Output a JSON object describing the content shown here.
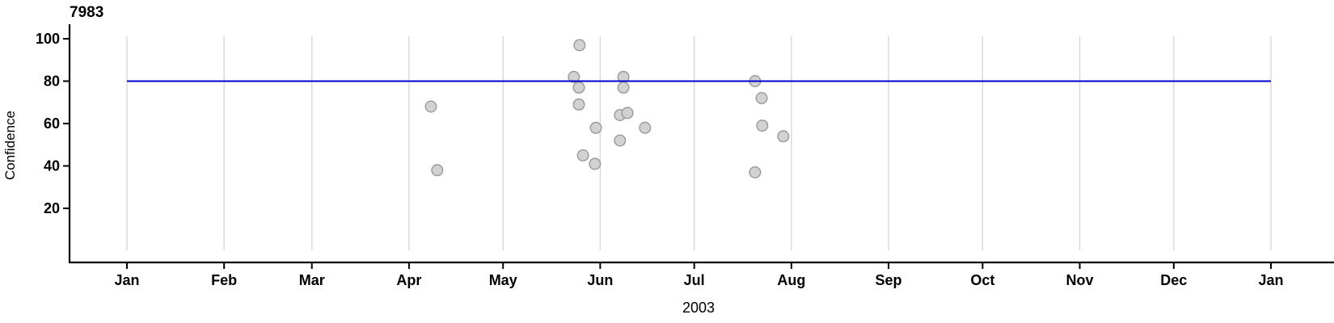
{
  "figure": {
    "title": "7983",
    "x_axis_label": "2003",
    "y_axis_label": "Confidence"
  },
  "colors": {
    "background": "#ffffff",
    "axis": "#000000",
    "gridline": "#d8d8d8",
    "tick_text": "#000000",
    "reference_line": "#0000cc",
    "point_fill": "#d2d2d2",
    "point_stroke": "#999999"
  },
  "chart_data": {
    "type": "scatter",
    "title": "7983",
    "xlabel": "2003",
    "ylabel": "Confidence",
    "grid": "vertical-monthly",
    "legend": "none",
    "x_axis": {
      "kind": "date",
      "year_shown": "2003",
      "tick_labels": [
        "Jan",
        "Feb",
        "Mar",
        "Apr",
        "May",
        "Jun",
        "Jul",
        "Aug",
        "Sep",
        "Oct",
        "Nov",
        "Dec",
        "Jan"
      ],
      "tick_days_from_jan1": [
        0,
        31,
        59,
        90,
        120,
        151,
        181,
        212,
        243,
        273,
        304,
        334,
        365
      ],
      "range_days": [
        0,
        365
      ]
    },
    "y_axis": {
      "label": "Confidence",
      "tick_values": [
        20,
        40,
        60,
        80,
        100
      ],
      "range": [
        0,
        104
      ]
    },
    "reference_line": {
      "y": 80,
      "color": "#0000cc",
      "orientation": "horizontal",
      "span": "full-plot-width"
    },
    "point_style": {
      "shape": "circle",
      "fill": "#d2d2d2",
      "stroke": "#999999",
      "radius_px": 6.8
    },
    "points": [
      {
        "date": "2003-04-08",
        "day_of_year": 97,
        "confidence": 68
      },
      {
        "date": "2003-04-10",
        "day_of_year": 99,
        "confidence": 38
      },
      {
        "date": "2003-05-23",
        "day_of_year": 142.6,
        "confidence": 82
      },
      {
        "date": "2003-05-25",
        "day_of_year": 144.4,
        "confidence": 97
      },
      {
        "date": "2003-05-25",
        "day_of_year": 144.2,
        "confidence": 77
      },
      {
        "date": "2003-05-25",
        "day_of_year": 144.2,
        "confidence": 69
      },
      {
        "date": "2003-05-26",
        "day_of_year": 145.5,
        "confidence": 45
      },
      {
        "date": "2003-05-30",
        "day_of_year": 149.6,
        "confidence": 58
      },
      {
        "date": "2003-05-30",
        "day_of_year": 149.3,
        "confidence": 41
      },
      {
        "date": "2003-06-08",
        "day_of_year": 158.4,
        "confidence": 82
      },
      {
        "date": "2003-06-08",
        "day_of_year": 158.4,
        "confidence": 77
      },
      {
        "date": "2003-06-07",
        "day_of_year": 157.3,
        "confidence": 64
      },
      {
        "date": "2003-06-09",
        "day_of_year": 159.7,
        "confidence": 65
      },
      {
        "date": "2003-06-07",
        "day_of_year": 157.3,
        "confidence": 52
      },
      {
        "date": "2003-06-15",
        "day_of_year": 165.3,
        "confidence": 58
      },
      {
        "date": "2003-07-20",
        "day_of_year": 200.4,
        "confidence": 80
      },
      {
        "date": "2003-07-22",
        "day_of_year": 202.5,
        "confidence": 72
      },
      {
        "date": "2003-07-22",
        "day_of_year": 202.7,
        "confidence": 59
      },
      {
        "date": "2003-07-29",
        "day_of_year": 209.4,
        "confidence": 54
      },
      {
        "date": "2003-07-20",
        "day_of_year": 200.4,
        "confidence": 37
      }
    ]
  }
}
